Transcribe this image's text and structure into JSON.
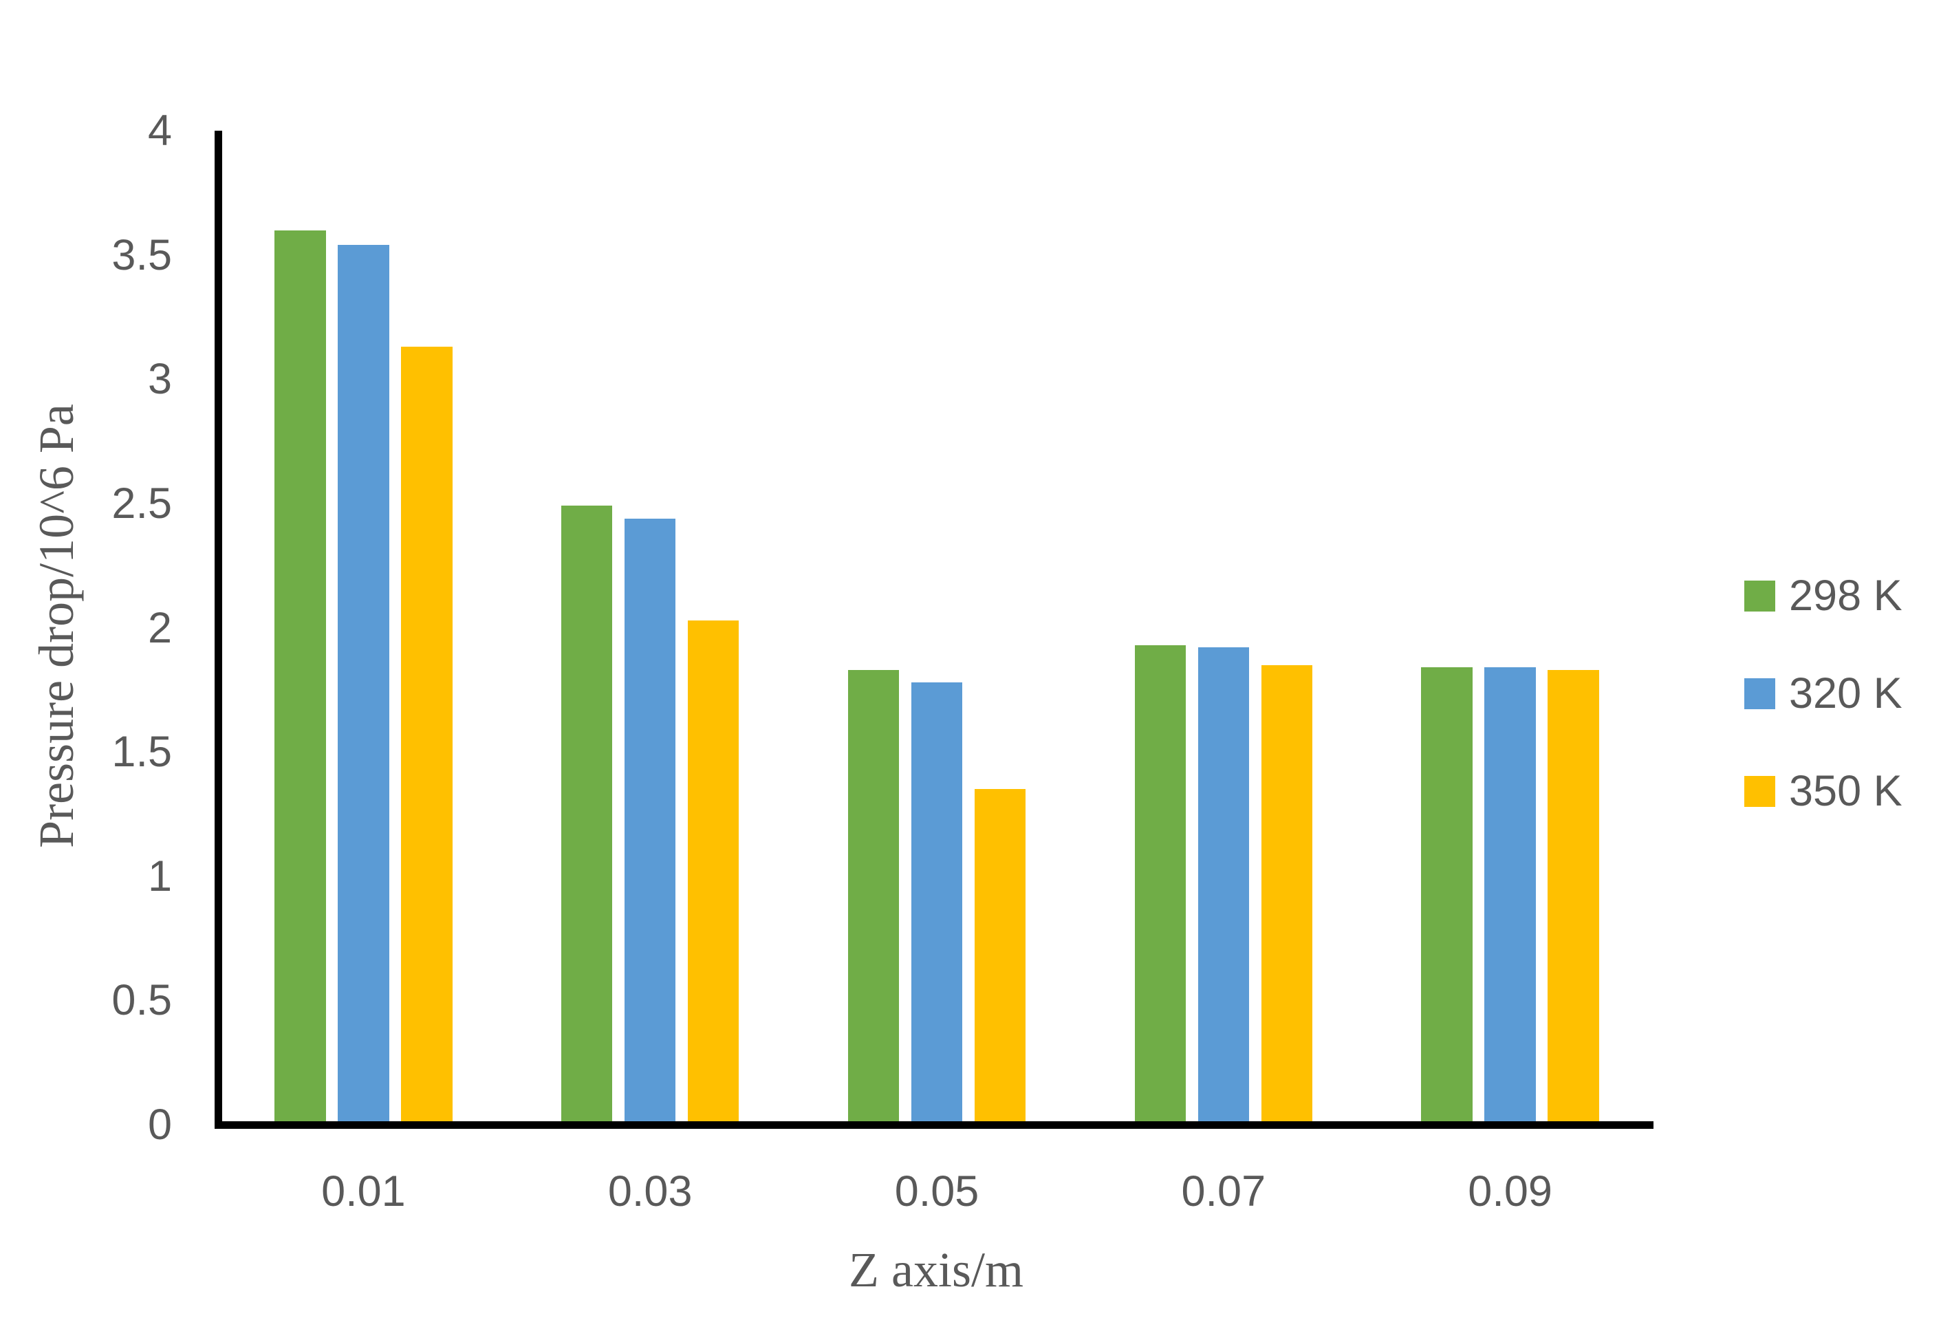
{
  "figure": {
    "background": "#FFFFFF",
    "text_color": "#595959",
    "axis_color": "#000000"
  },
  "chart_data": {
    "type": "bar",
    "title": "",
    "xlabel": "Z axis/m",
    "ylabel": "Pressure drop/10^6 Pa",
    "categories": [
      "0.01",
      "0.03",
      "0.05",
      "0.07",
      "0.09"
    ],
    "series": [
      {
        "name": "298 K",
        "color": "#70AD47",
        "values": [
          3.6,
          2.49,
          1.83,
          1.93,
          1.84
        ]
      },
      {
        "name": "320 K",
        "color": "#5B9BD5",
        "values": [
          3.54,
          2.44,
          1.78,
          1.92,
          1.84
        ]
      },
      {
        "name": "350 K",
        "color": "#FFC000",
        "values": [
          3.13,
          2.03,
          1.35,
          1.85,
          1.83
        ]
      }
    ],
    "ylim": [
      0,
      4
    ],
    "ytick_step": 0.5,
    "yticks": [
      "0",
      "0.5",
      "1",
      "1.5",
      "2",
      "2.5",
      "3",
      "3.5",
      "4"
    ],
    "grid": false,
    "legend_position": "right"
  }
}
